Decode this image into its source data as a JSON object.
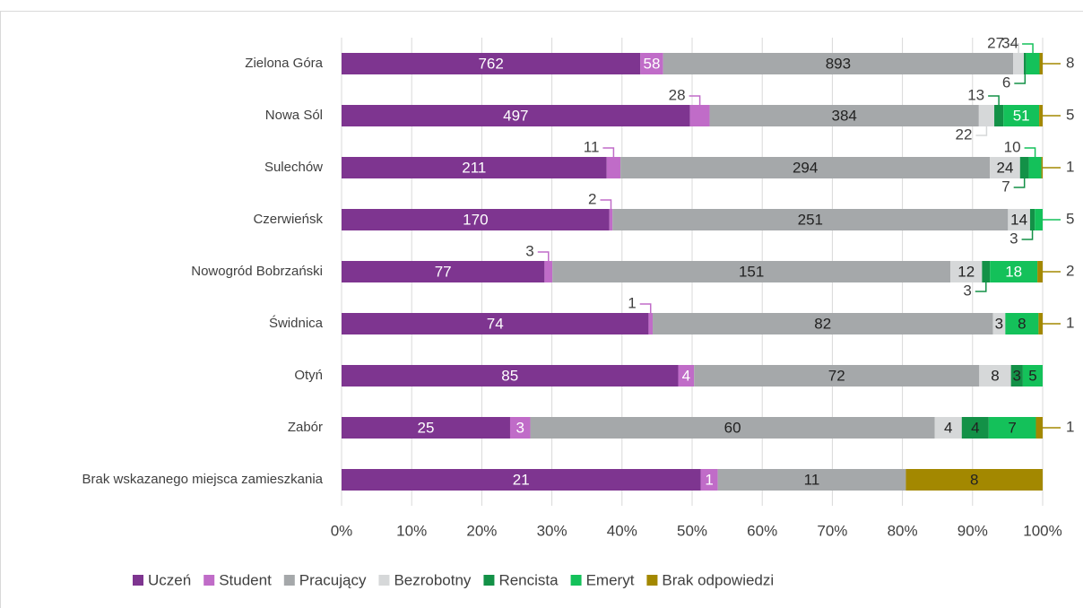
{
  "chart_data": {
    "type": "stacked-bar-100",
    "categories": [
      "Zielona Góra",
      "Nowa Sól",
      "Sulechów",
      "Czerwieńsk",
      "Nowogród Bobrzański",
      "Świdnica",
      "Otyń",
      "Zabór",
      "Brak wskazanego miejsca zamieszkania"
    ],
    "series": [
      {
        "name": "Uczeń",
        "color": "#7e3590",
        "values": [
          762,
          497,
          211,
          170,
          77,
          74,
          85,
          25,
          21
        ]
      },
      {
        "name": "Student",
        "color": "#c06cc8",
        "values": [
          58,
          28,
          11,
          2,
          3,
          1,
          4,
          3,
          1
        ]
      },
      {
        "name": "Pracujący",
        "color": "#a5a8aa",
        "values": [
          893,
          384,
          294,
          251,
          151,
          82,
          72,
          60,
          11
        ]
      },
      {
        "name": "Bezrobotny",
        "color": "#d6d8d9",
        "values": [
          27,
          22,
          24,
          14,
          12,
          3,
          8,
          4,
          null
        ]
      },
      {
        "name": "Rencista",
        "color": "#139147",
        "values": [
          6,
          13,
          7,
          3,
          3,
          null,
          3,
          4,
          null
        ]
      },
      {
        "name": "Emeryt",
        "color": "#14c15a",
        "values": [
          34,
          51,
          10,
          5,
          18,
          8,
          5,
          7,
          null
        ]
      },
      {
        "name": "Brak odpowiedzi",
        "color": "#a38800",
        "values": [
          8,
          5,
          1,
          null,
          2,
          1,
          null,
          1,
          8
        ]
      }
    ],
    "xlim": [
      0,
      100
    ],
    "xticks": [
      {
        "value": 0,
        "label": "0%"
      },
      {
        "value": 10,
        "label": "10%"
      },
      {
        "value": 20,
        "label": "20%"
      },
      {
        "value": 30,
        "label": "30%"
      },
      {
        "value": 40,
        "label": "40%"
      },
      {
        "value": 50,
        "label": "50%"
      },
      {
        "value": 60,
        "label": "60%"
      },
      {
        "value": 70,
        "label": "70%"
      },
      {
        "value": 80,
        "label": "80%"
      },
      {
        "value": 90,
        "label": "90%"
      },
      {
        "value": 100,
        "label": "100%"
      }
    ],
    "grid": true,
    "legend": "bottom"
  }
}
